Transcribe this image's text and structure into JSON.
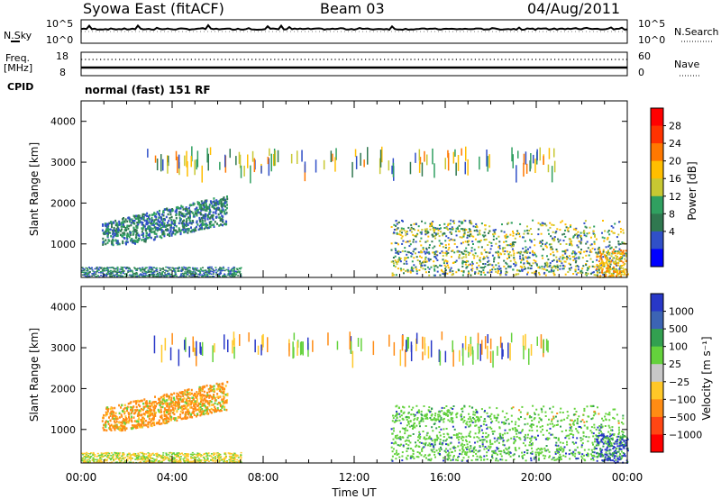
{
  "header": {
    "station": "Syowa East (fitACF)",
    "beam": "Beam 03",
    "date": "04/Aug/2011"
  },
  "noise_panel": {
    "left_label": "N.Sky",
    "right_label": "N.Search",
    "left_ticks": [
      "10^5",
      "10^0"
    ],
    "right_ticks": [
      "10^5",
      "10^0"
    ]
  },
  "freq_panel": {
    "left_label_line1": "Freq.",
    "left_label_line2": "[MHz]",
    "right_label": "Nave",
    "left_ticks": [
      "18",
      "8"
    ],
    "right_ticks": [
      "60",
      "0"
    ]
  },
  "cpid": {
    "label": "CPID",
    "value": "normal (fast) 151 RF"
  },
  "chart_data": [
    {
      "type": "heatmap",
      "name": "power",
      "ylabel": "Slant Range [km]",
      "ylim": [
        180,
        4500
      ],
      "yticks": [
        "1000",
        "2000",
        "3000",
        "4000"
      ],
      "xlim_hours": [
        0,
        24
      ],
      "colorbar_label": "Power [dB]",
      "colorbar_ticks": [
        "28",
        "24",
        "20",
        "16",
        "12",
        "8",
        "4"
      ],
      "colorbar_colors": [
        "#0000ff",
        "#3050c8",
        "#307850",
        "#30a060",
        "#c8c832",
        "#ffbe00",
        "#ff7800",
        "#ff3200",
        "#ff0000"
      ]
    },
    {
      "type": "heatmap",
      "name": "velocity",
      "ylabel": "Slant Range [km]",
      "ylim": [
        180,
        4500
      ],
      "yticks": [
        "1000",
        "2000",
        "3000",
        "4000"
      ],
      "xlim_hours": [
        0,
        24
      ],
      "colorbar_label": "Velocity [m s⁻¹]",
      "colorbar_ticks": [
        "1000",
        "500",
        "100",
        "25",
        "−25",
        "−100",
        "−500",
        "−1000"
      ],
      "colorbar_colors": [
        "#2838c8",
        "#3c64b4",
        "#32a050",
        "#64d23c",
        "#c8c8c8",
        "#ffc828",
        "#ff8c14",
        "#ff4614",
        "#ff0000"
      ]
    }
  ],
  "x_axis": {
    "ticks": [
      "00:00",
      "04:00",
      "08:00",
      "12:00",
      "16:00",
      "20:00",
      "00:00"
    ],
    "label": "Time UT"
  }
}
